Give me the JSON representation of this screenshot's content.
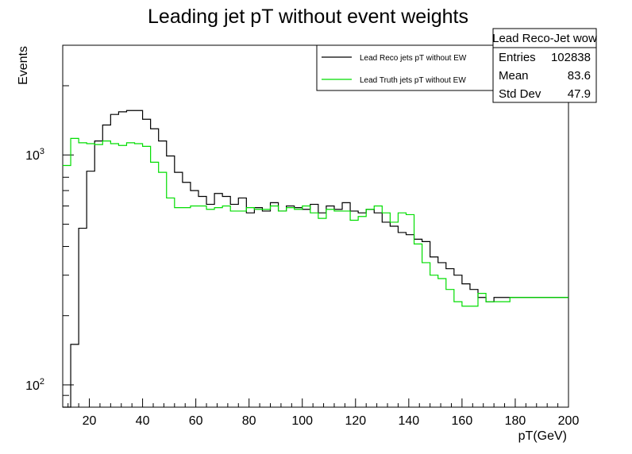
{
  "chart_data": {
    "type": "line",
    "title": "Leading jet pT without event weights",
    "xlabel": "pT(GeV)",
    "ylabel": "Events",
    "xlim": [
      10,
      200
    ],
    "ylim": [
      80,
      3000
    ],
    "yscale": "log",
    "xticks": [
      "20",
      "40",
      "60",
      "80",
      "100",
      "120",
      "140",
      "160",
      "180",
      "200"
    ],
    "yticks": [
      {
        "base": "10",
        "exp": "2",
        "value": 100
      },
      {
        "base": "10",
        "exp": "3",
        "value": 1000
      }
    ],
    "bin_edges": [
      10,
      13,
      16,
      19,
      22,
      25,
      28,
      31,
      34,
      37,
      40,
      43,
      46,
      49,
      52,
      55,
      58,
      61,
      64,
      67,
      70,
      73,
      76,
      79,
      82,
      85,
      88,
      91,
      94,
      97,
      100,
      103,
      106,
      109,
      112,
      115,
      118,
      121,
      124,
      127,
      130,
      133,
      136,
      139,
      142,
      145,
      148,
      151,
      154,
      157,
      160,
      163,
      166,
      169,
      172,
      175,
      178,
      181,
      184,
      187,
      190,
      193,
      196,
      199,
      202
    ],
    "series": [
      {
        "name": "Lead Reco jets pT without EW",
        "color": "#000000",
        "values": [
          70,
          150,
          480,
          850,
          1150,
          1350,
          1500,
          1540,
          1560,
          1560,
          1430,
          1300,
          1150,
          990,
          840,
          760,
          700,
          660,
          610,
          680,
          660,
          610,
          650,
          560,
          590,
          570,
          620,
          570,
          600,
          590,
          580,
          610,
          560,
          600,
          580,
          620,
          570,
          560,
          580,
          560,
          510,
          490,
          460,
          450,
          430,
          420,
          360,
          340,
          320,
          300,
          275,
          260,
          240,
          230,
          240,
          240,
          240,
          240,
          240,
          240,
          240,
          240,
          240,
          240
        ]
      },
      {
        "name": "Lead Truth jets pT without EW",
        "color": "#00dd00",
        "values": [
          900,
          1180,
          1130,
          1120,
          1110,
          1150,
          1120,
          1100,
          1130,
          1120,
          1090,
          930,
          840,
          650,
          590,
          590,
          600,
          600,
          580,
          590,
          600,
          570,
          570,
          590,
          580,
          580,
          600,
          570,
          590,
          580,
          600,
          560,
          530,
          580,
          570,
          570,
          520,
          540,
          580,
          600,
          560,
          510,
          560,
          550,
          410,
          340,
          300,
          290,
          260,
          230,
          220,
          220,
          250,
          230,
          230,
          230,
          240,
          240,
          240,
          240,
          240,
          240,
          240,
          240
        ]
      }
    ],
    "legend_position": "top-right",
    "stats": {
      "title": "Lead Reco-Jet wow",
      "rows": [
        {
          "label": "Entries",
          "value": "102838"
        },
        {
          "label": "Mean",
          "value": "83.6"
        },
        {
          "label": "Std Dev",
          "value": "47.9"
        }
      ]
    }
  }
}
